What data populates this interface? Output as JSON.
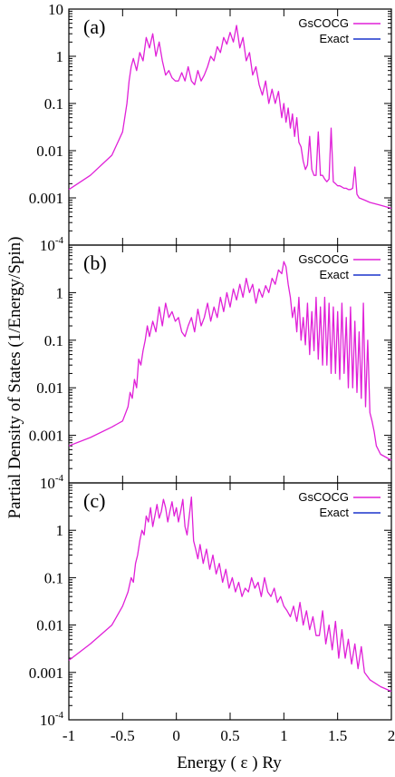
{
  "ylabel": "Partial Density of States (1/Energy/Spin)",
  "xlabel": "Energy ( ε ) Ry",
  "colors": {
    "GsCOCG": "#e020d8",
    "Exact": "#1a33cc"
  },
  "chart_data": [
    {
      "type": "line",
      "panel": "(a)",
      "yscale": "log",
      "ylim": [
        0.0001,
        10
      ],
      "xlim": [
        -1,
        2
      ],
      "legend": [
        "GsCOCG",
        "Exact"
      ],
      "legend_position": "top-right",
      "series": [
        {
          "name": "GsCOCG",
          "x": [
            -1,
            -0.8,
            -0.6,
            -0.5,
            -0.46,
            -0.44,
            -0.42,
            -0.4,
            -0.37,
            -0.34,
            -0.31,
            -0.28,
            -0.25,
            -0.22,
            -0.19,
            -0.16,
            -0.13,
            -0.1,
            -0.07,
            -0.04,
            -0.01,
            0.02,
            0.05,
            0.08,
            0.11,
            0.14,
            0.17,
            0.2,
            0.23,
            0.26,
            0.29,
            0.32,
            0.35,
            0.38,
            0.41,
            0.44,
            0.47,
            0.5,
            0.53,
            0.56,
            0.59,
            0.62,
            0.65,
            0.68,
            0.71,
            0.74,
            0.77,
            0.8,
            0.83,
            0.86,
            0.89,
            0.92,
            0.95,
            0.98,
            1.0,
            1.02,
            1.04,
            1.06,
            1.08,
            1.1,
            1.12,
            1.14,
            1.16,
            1.18,
            1.2,
            1.22,
            1.24,
            1.26,
            1.28,
            1.3,
            1.32,
            1.34,
            1.36,
            1.38,
            1.4,
            1.42,
            1.44,
            1.46,
            1.48,
            1.5,
            1.52,
            1.54,
            1.56,
            1.58,
            1.6,
            1.62,
            1.64,
            1.66,
            1.68,
            1.7,
            1.75,
            1.8,
            1.9,
            2.0
          ],
          "y": [
            0.0015,
            0.003,
            0.008,
            0.025,
            0.1,
            0.3,
            0.6,
            0.9,
            0.5,
            1.2,
            0.8,
            2.5,
            1.5,
            3.0,
            1.0,
            2.0,
            0.8,
            0.4,
            0.5,
            0.35,
            0.3,
            0.3,
            0.45,
            0.3,
            0.6,
            0.3,
            0.25,
            0.5,
            0.3,
            0.4,
            0.6,
            1.0,
            0.8,
            1.6,
            1.2,
            2.5,
            1.8,
            3.2,
            2.0,
            4.5,
            1.5,
            2.5,
            0.8,
            1.2,
            0.4,
            0.6,
            0.25,
            0.15,
            0.3,
            0.1,
            0.2,
            0.1,
            0.18,
            0.05,
            0.1,
            0.04,
            0.08,
            0.03,
            0.06,
            0.02,
            0.05,
            0.015,
            0.012,
            0.006,
            0.004,
            0.005,
            0.02,
            0.004,
            0.003,
            0.003,
            0.025,
            0.003,
            0.003,
            0.0025,
            0.0022,
            0.0025,
            0.03,
            0.0022,
            0.002,
            0.0018,
            0.0018,
            0.0017,
            0.0016,
            0.0016,
            0.0015,
            0.0015,
            0.0016,
            0.0045,
            0.0012,
            0.001,
            0.0009,
            0.0008,
            0.0007,
            0.0006
          ]
        }
      ]
    },
    {
      "type": "line",
      "panel": "(b)",
      "yscale": "log",
      "ylim": [
        0.0001,
        10
      ],
      "xlim": [
        -1,
        2
      ],
      "legend": [
        "GsCOCG",
        "Exact"
      ],
      "legend_position": "top-right",
      "series": [
        {
          "name": "GsCOCG",
          "x": [
            -1,
            -0.8,
            -0.6,
            -0.5,
            -0.45,
            -0.43,
            -0.41,
            -0.39,
            -0.37,
            -0.35,
            -0.33,
            -0.31,
            -0.29,
            -0.27,
            -0.25,
            -0.22,
            -0.19,
            -0.16,
            -0.13,
            -0.1,
            -0.07,
            -0.04,
            -0.01,
            0.02,
            0.05,
            0.08,
            0.11,
            0.14,
            0.17,
            0.2,
            0.23,
            0.26,
            0.29,
            0.32,
            0.35,
            0.38,
            0.41,
            0.44,
            0.47,
            0.5,
            0.53,
            0.56,
            0.59,
            0.62,
            0.65,
            0.68,
            0.71,
            0.74,
            0.77,
            0.8,
            0.83,
            0.86,
            0.89,
            0.92,
            0.95,
            0.98,
            1.0,
            1.02,
            1.04,
            1.06,
            1.08,
            1.1,
            1.12,
            1.14,
            1.16,
            1.18,
            1.2,
            1.22,
            1.24,
            1.26,
            1.28,
            1.3,
            1.32,
            1.34,
            1.36,
            1.38,
            1.4,
            1.42,
            1.44,
            1.46,
            1.48,
            1.5,
            1.52,
            1.54,
            1.56,
            1.58,
            1.6,
            1.62,
            1.64,
            1.66,
            1.68,
            1.7,
            1.72,
            1.74,
            1.76,
            1.78,
            1.8,
            1.82,
            1.84,
            1.86,
            1.9,
            2.0
          ],
          "y": [
            0.0006,
            0.0009,
            0.0015,
            0.002,
            0.004,
            0.008,
            0.006,
            0.015,
            0.01,
            0.04,
            0.03,
            0.06,
            0.1,
            0.2,
            0.12,
            0.25,
            0.15,
            0.5,
            0.2,
            0.6,
            0.3,
            0.4,
            0.25,
            0.3,
            0.15,
            0.12,
            0.2,
            0.3,
            0.15,
            0.45,
            0.2,
            0.3,
            0.6,
            0.25,
            0.5,
            0.3,
            0.8,
            0.4,
            1.0,
            0.5,
            1.2,
            0.7,
            1.5,
            0.8,
            2.0,
            1.0,
            1.5,
            0.6,
            1.2,
            0.8,
            1.4,
            1.0,
            2.0,
            1.5,
            3.0,
            2.5,
            4.5,
            3.5,
            1.5,
            0.8,
            0.3,
            0.5,
            0.15,
            0.8,
            0.1,
            0.3,
            0.08,
            0.6,
            0.05,
            0.4,
            0.06,
            0.8,
            0.04,
            0.5,
            0.03,
            0.8,
            0.03,
            0.6,
            0.02,
            0.5,
            0.02,
            0.4,
            0.015,
            0.6,
            0.02,
            0.3,
            0.01,
            0.5,
            0.01,
            0.25,
            0.008,
            0.15,
            0.006,
            0.6,
            0.004,
            0.1,
            0.003,
            0.002,
            0.0012,
            0.0006,
            0.0004,
            0.0003
          ]
        }
      ]
    },
    {
      "type": "line",
      "panel": "(c)",
      "yscale": "log",
      "ylim": [
        0.0001,
        10
      ],
      "xlim": [
        -1,
        2
      ],
      "legend": [
        "GsCOCG",
        "Exact"
      ],
      "legend_position": "top-right",
      "series": [
        {
          "name": "GsCOCG",
          "x": [
            -1,
            -0.8,
            -0.6,
            -0.5,
            -0.45,
            -0.42,
            -0.4,
            -0.38,
            -0.36,
            -0.34,
            -0.32,
            -0.3,
            -0.28,
            -0.26,
            -0.24,
            -0.22,
            -0.2,
            -0.18,
            -0.16,
            -0.14,
            -0.12,
            -0.1,
            -0.08,
            -0.06,
            -0.04,
            -0.02,
            0.0,
            0.02,
            0.04,
            0.06,
            0.08,
            0.1,
            0.12,
            0.14,
            0.16,
            0.18,
            0.2,
            0.22,
            0.25,
            0.28,
            0.31,
            0.34,
            0.37,
            0.4,
            0.43,
            0.46,
            0.49,
            0.52,
            0.55,
            0.58,
            0.61,
            0.64,
            0.67,
            0.7,
            0.73,
            0.76,
            0.79,
            0.82,
            0.85,
            0.88,
            0.91,
            0.94,
            0.97,
            1.0,
            1.03,
            1.06,
            1.09,
            1.12,
            1.15,
            1.18,
            1.21,
            1.24,
            1.27,
            1.3,
            1.33,
            1.36,
            1.39,
            1.42,
            1.45,
            1.48,
            1.51,
            1.54,
            1.57,
            1.6,
            1.63,
            1.66,
            1.69,
            1.72,
            1.75,
            1.8,
            1.9,
            2.0
          ],
          "y": [
            0.0018,
            0.004,
            0.01,
            0.025,
            0.05,
            0.1,
            0.08,
            0.2,
            0.3,
            0.6,
            1.0,
            0.8,
            2.0,
            1.5,
            3.0,
            1.2,
            2.0,
            3.5,
            1.8,
            2.5,
            4.5,
            3.0,
            1.5,
            2.5,
            4.0,
            2.0,
            3.0,
            1.5,
            2.5,
            4.5,
            1.2,
            0.8,
            2.0,
            5.0,
            0.6,
            0.4,
            0.25,
            0.5,
            0.2,
            0.4,
            0.15,
            0.3,
            0.12,
            0.2,
            0.08,
            0.15,
            0.06,
            0.1,
            0.05,
            0.08,
            0.04,
            0.06,
            0.05,
            0.1,
            0.06,
            0.08,
            0.04,
            0.1,
            0.05,
            0.04,
            0.06,
            0.03,
            0.04,
            0.025,
            0.02,
            0.015,
            0.025,
            0.012,
            0.03,
            0.01,
            0.02,
            0.008,
            0.015,
            0.006,
            0.006,
            0.02,
            0.004,
            0.01,
            0.003,
            0.012,
            0.002,
            0.008,
            0.002,
            0.005,
            0.0015,
            0.004,
            0.0012,
            0.0035,
            0.001,
            0.0007,
            0.0005,
            0.0004
          ]
        }
      ]
    }
  ]
}
